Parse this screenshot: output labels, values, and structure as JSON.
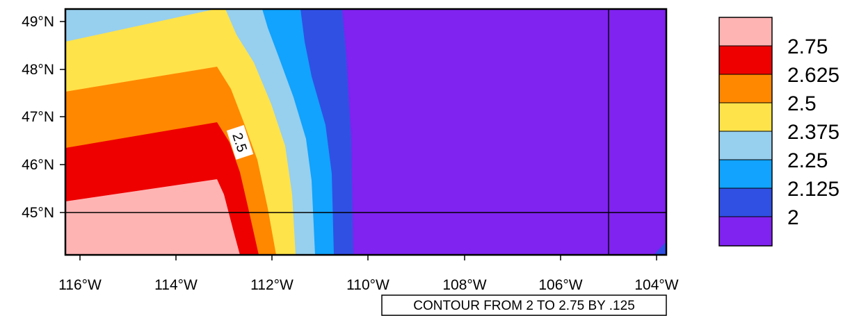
{
  "map": {
    "lat_labels": [
      {
        "lat": 49,
        "text": "49°N"
      },
      {
        "lat": 48,
        "text": "48°N"
      },
      {
        "lat": 47,
        "text": "47°N"
      },
      {
        "lat": 46,
        "text": "46°N"
      },
      {
        "lat": 45,
        "text": "45°N"
      }
    ],
    "lon_labels": [
      {
        "lon": -116,
        "text": "116°W"
      },
      {
        "lon": -114,
        "text": "114°W"
      },
      {
        "lon": -112,
        "text": "112°W"
      },
      {
        "lon": -110,
        "text": "110°W"
      },
      {
        "lon": -108,
        "text": "108°W"
      },
      {
        "lon": -106,
        "text": "106°W"
      },
      {
        "lon": -104,
        "text": "104°W"
      }
    ],
    "extent": {
      "lon_min": -116.3,
      "lon_max": -103.8,
      "lat_min": 44.1,
      "lat_max": 49.25
    },
    "grid_lines": {
      "lat": 45,
      "lon": -105
    },
    "contour_label": {
      "text": "2.5",
      "lon": -112.9,
      "lat": 46.5
    },
    "info_label": "CONTOUR FROM 2 TO 2.75 BY .125",
    "colors": {
      "c2_75": "#ffb4b4",
      "c2_625": "#ee0000",
      "c2_5": "#ff8800",
      "c2_375": "#ffe34a",
      "c2_25": "#97cfee",
      "c2_125": "#11a3fd",
      "c2_0": "#3050e4",
      "below": "#8022f0"
    }
  },
  "legend": {
    "items": [
      {
        "color": "#ffb4b4",
        "label": "2.75"
      },
      {
        "color": "#ee0000",
        "label": "2.625"
      },
      {
        "color": "#ff8800",
        "label": "2.5"
      },
      {
        "color": "#ffe34a",
        "label": "2.375"
      },
      {
        "color": "#97cfee",
        "label": "2.25"
      },
      {
        "color": "#11a3fd",
        "label": "2.125"
      },
      {
        "color": "#3050e4",
        "label": "2"
      },
      {
        "color": "#8022f0",
        "label": ""
      }
    ]
  }
}
